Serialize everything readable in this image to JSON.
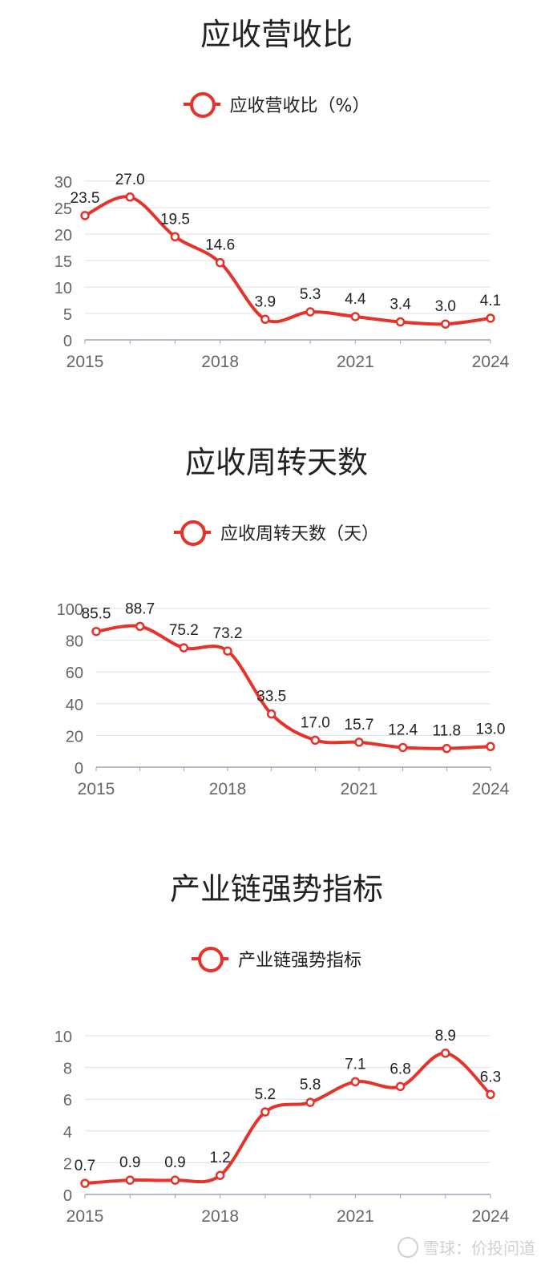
{
  "chart_data": [
    {
      "type": "line",
      "title": "应收营收比",
      "legend": "应收营收比（%）",
      "x": [
        "2015",
        "2016",
        "2017",
        "2018",
        "2019",
        "2020",
        "2021",
        "2022",
        "2023",
        "2024"
      ],
      "xticks": [
        "2015",
        "2018",
        "2021",
        "2024"
      ],
      "values": [
        23.5,
        27.0,
        19.5,
        14.6,
        3.9,
        5.3,
        4.4,
        3.4,
        3.0,
        4.1
      ],
      "labels": [
        "23.5",
        "27.0",
        "19.5",
        "14.6",
        "3.9",
        "5.3",
        "4.4",
        "3.4",
        "3.0",
        "4.1"
      ],
      "ylim": [
        0,
        30
      ],
      "yticks": [
        0,
        5,
        10,
        15,
        20,
        25,
        30
      ],
      "grid": true,
      "legend_position": "top-center",
      "color": "#e4332a"
    },
    {
      "type": "line",
      "title": "应收周转天数",
      "legend": "应收周转天数（天）",
      "x": [
        "2015",
        "2016",
        "2017",
        "2018",
        "2019",
        "2020",
        "2021",
        "2022",
        "2023",
        "2024"
      ],
      "xticks": [
        "2015",
        "2018",
        "2021",
        "2024"
      ],
      "values": [
        85.5,
        88.7,
        75.2,
        73.2,
        33.5,
        17.0,
        15.7,
        12.4,
        11.8,
        13.0
      ],
      "labels": [
        "85.5",
        "88.7",
        "75.2",
        "73.2",
        "33.5",
        "17.0",
        "15.7",
        "12.4",
        "11.8",
        "13.0"
      ],
      "ylim": [
        0,
        100
      ],
      "yticks": [
        0,
        20,
        40,
        60,
        80,
        100
      ],
      "grid": true,
      "legend_position": "top-center",
      "color": "#e4332a"
    },
    {
      "type": "line",
      "title": "产业链强势指标",
      "legend": "产业链强势指标",
      "x": [
        "2015",
        "2016",
        "2017",
        "2018",
        "2019",
        "2020",
        "2021",
        "2022",
        "2023",
        "2024"
      ],
      "xticks": [
        "2015",
        "2018",
        "2021",
        "2024"
      ],
      "values": [
        0.7,
        0.9,
        0.9,
        1.2,
        5.2,
        5.8,
        7.1,
        6.8,
        8.9,
        6.3
      ],
      "labels": [
        "0.7",
        "0.9",
        "0.9",
        "1.2",
        "5.2",
        "5.8",
        "7.1",
        "6.8",
        "8.9",
        "6.3"
      ],
      "ylim": [
        0,
        10
      ],
      "yticks": [
        0,
        2,
        4,
        6,
        8,
        10
      ],
      "grid": true,
      "legend_position": "top-center",
      "color": "#e4332a"
    }
  ],
  "watermark": "雪球：价投问道"
}
